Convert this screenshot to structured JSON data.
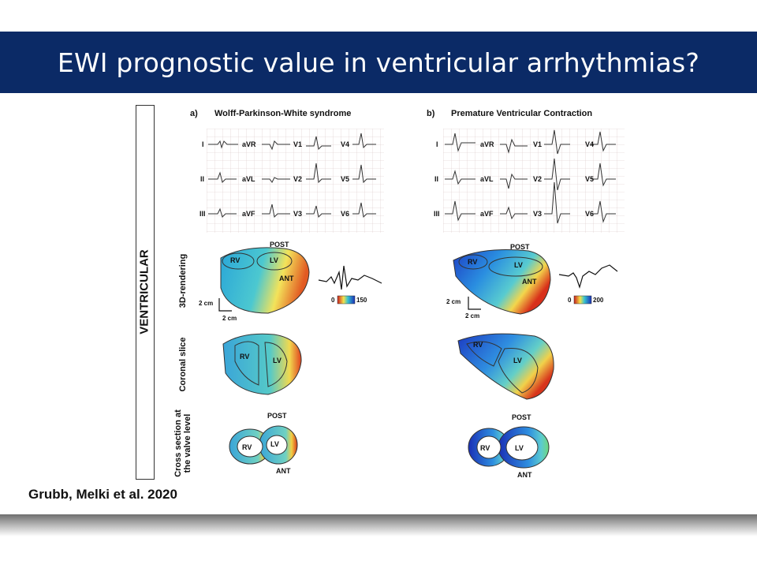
{
  "slide": {
    "title": "EWI prognostic value in ventricular arrhythmias?"
  },
  "figure": {
    "side_label": "VENTRICULAR",
    "row_labels": [
      "3D-rendering",
      "Coronal slice",
      "Cross section at the valve level"
    ],
    "panels": [
      {
        "letter": "a)",
        "title": "Wolff-Parkinson-White syndrome",
        "colorbar_min": "0",
        "colorbar_max": "150"
      },
      {
        "letter": "b)",
        "title": "Premature Ventricular Contraction",
        "colorbar_min": "0",
        "colorbar_max": "200"
      }
    ],
    "ecg_leads": [
      [
        "I",
        "aVR",
        "V1",
        "V4"
      ],
      [
        "II",
        "aVL",
        "V2",
        "V5"
      ],
      [
        "III",
        "aVF",
        "V3",
        "V6"
      ]
    ],
    "annotations": {
      "post": "POST",
      "ant": "ANT",
      "rv": "RV",
      "lv": "LV",
      "scale": "2 cm"
    }
  },
  "citation": "Grubb, Melki et al. 2020"
}
